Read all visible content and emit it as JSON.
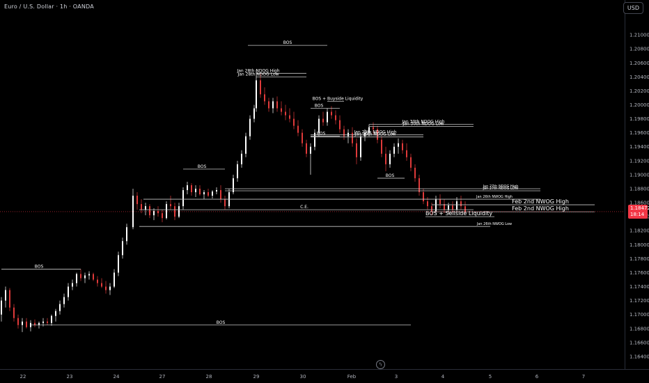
{
  "header": {
    "symbol": "Euro / U.S. Dollar · 1h · OANDA",
    "currency": "USD"
  },
  "price_badge": {
    "price": "1.18472",
    "countdown": "18:14"
  },
  "colors": {
    "up": "#ffffff",
    "down": "#e03a3a",
    "lines": "#c8c8c8",
    "price_line": "#f23645",
    "axis_text": "#b2b5be",
    "background": "#000000"
  },
  "chart_data": {
    "type": "candlestick",
    "x_axis": {
      "ticks": [
        "22",
        "23",
        "24",
        "27",
        "28",
        "29",
        "30",
        "Feb",
        "3",
        "4",
        "5",
        "6",
        "7"
      ]
    },
    "y_axis": {
      "ylim": [
        1.163,
        1.2125
      ],
      "ticks": [
        "1.21000",
        "1.20800",
        "1.20600",
        "1.20400",
        "1.20200",
        "1.20000",
        "1.19800",
        "1.19600",
        "1.19400",
        "1.19200",
        "1.19000",
        "1.18800",
        "1.18600",
        "1.18400",
        "1.18200",
        "1.18000",
        "1.17800",
        "1.17600",
        "1.17400",
        "1.17200",
        "1.17000",
        "1.16800",
        "1.16600",
        "1.16400"
      ]
    },
    "current_price": 1.18472,
    "candles": [
      [
        0,
        1.17,
        1.1725,
        1.169,
        1.172
      ],
      [
        2,
        1.172,
        1.174,
        1.171,
        1.1735
      ],
      [
        4,
        1.1735,
        1.1738,
        1.1705,
        1.171
      ],
      [
        6,
        1.171,
        1.1715,
        1.169,
        1.1695
      ],
      [
        8,
        1.1695,
        1.17,
        1.168,
        1.1685
      ],
      [
        10,
        1.1685,
        1.1695,
        1.1675,
        1.169
      ],
      [
        12,
        1.169,
        1.1695,
        1.168,
        1.1682
      ],
      [
        14,
        1.1682,
        1.1692,
        1.1676,
        1.1688
      ],
      [
        16,
        1.1688,
        1.1693,
        1.1682,
        1.1685
      ],
      [
        18,
        1.1685,
        1.169,
        1.168,
        1.1688
      ],
      [
        20,
        1.1688,
        1.1695,
        1.1683,
        1.169
      ],
      [
        22,
        1.169,
        1.1695,
        1.1685,
        1.1688
      ],
      [
        24,
        1.1688,
        1.17,
        1.1684,
        1.1698
      ],
      [
        26,
        1.1698,
        1.1708,
        1.169,
        1.1705
      ],
      [
        28,
        1.1705,
        1.172,
        1.17,
        1.1715
      ],
      [
        30,
        1.1715,
        1.173,
        1.171,
        1.1725
      ],
      [
        32,
        1.1725,
        1.1745,
        1.172,
        1.174
      ],
      [
        34,
        1.174,
        1.175,
        1.1735,
        1.1745
      ],
      [
        36,
        1.1745,
        1.176,
        1.174,
        1.1758
      ],
      [
        38,
        1.1758,
        1.1765,
        1.1748,
        1.1752
      ],
      [
        40,
        1.1752,
        1.176,
        1.1745,
        1.1756
      ],
      [
        42,
        1.1756,
        1.1762,
        1.175,
        1.1758
      ],
      [
        44,
        1.1758,
        1.176,
        1.1748,
        1.175
      ],
      [
        46,
        1.175,
        1.1755,
        1.174,
        1.1745
      ],
      [
        48,
        1.1745,
        1.1752,
        1.1738,
        1.174
      ],
      [
        50,
        1.174,
        1.1748,
        1.173,
        1.1735
      ],
      [
        52,
        1.1735,
        1.1745,
        1.1728,
        1.174
      ],
      [
        54,
        1.174,
        1.1765,
        1.1738,
        1.176
      ],
      [
        56,
        1.176,
        1.179,
        1.1755,
        1.1785
      ],
      [
        58,
        1.1785,
        1.181,
        1.178,
        1.1805
      ],
      [
        60,
        1.1805,
        1.183,
        1.18,
        1.1825
      ],
      [
        63,
        1.1825,
        1.188,
        1.1822,
        1.187
      ],
      [
        65,
        1.187,
        1.1875,
        1.185,
        1.1858
      ],
      [
        67,
        1.1858,
        1.1865,
        1.1845,
        1.185
      ],
      [
        69,
        1.185,
        1.186,
        1.1842,
        1.1855
      ],
      [
        71,
        1.1855,
        1.1858,
        1.1838,
        1.1842
      ],
      [
        73,
        1.1842,
        1.1852,
        1.1835,
        1.1848
      ],
      [
        75,
        1.1848,
        1.1855,
        1.184,
        1.1845
      ],
      [
        77,
        1.1845,
        1.185,
        1.1832,
        1.1838
      ],
      [
        79,
        1.1838,
        1.1862,
        1.1836,
        1.1858
      ],
      [
        81,
        1.1858,
        1.187,
        1.185,
        1.1855
      ],
      [
        83,
        1.1855,
        1.186,
        1.1835,
        1.184
      ],
      [
        85,
        1.184,
        1.186,
        1.1838,
        1.1855
      ],
      [
        87,
        1.1855,
        1.1882,
        1.185,
        1.1878
      ],
      [
        89,
        1.1878,
        1.189,
        1.1872,
        1.1885
      ],
      [
        91,
        1.1885,
        1.1888,
        1.187,
        1.1875
      ],
      [
        93,
        1.1875,
        1.1885,
        1.1868,
        1.188
      ],
      [
        95,
        1.188,
        1.1885,
        1.187,
        1.1872
      ],
      [
        97,
        1.1872,
        1.1878,
        1.1865,
        1.1875
      ],
      [
        99,
        1.1875,
        1.188,
        1.1868,
        1.187
      ],
      [
        101,
        1.187,
        1.1878,
        1.1866,
        1.1876
      ],
      [
        103,
        1.1876,
        1.1882,
        1.1872,
        1.1878
      ],
      [
        105,
        1.1878,
        1.1885,
        1.186,
        1.1865
      ],
      [
        107,
        1.1865,
        1.187,
        1.185,
        1.1855
      ],
      [
        109,
        1.1855,
        1.188,
        1.1852,
        1.1875
      ],
      [
        111,
        1.1875,
        1.19,
        1.1872,
        1.1895
      ],
      [
        113,
        1.1895,
        1.192,
        1.189,
        1.1915
      ],
      [
        115,
        1.1915,
        1.1935,
        1.191,
        1.193
      ],
      [
        117,
        1.193,
        1.196,
        1.1925,
        1.1955
      ],
      [
        119,
        1.1955,
        1.1985,
        1.195,
        1.198
      ],
      [
        121,
        1.198,
        1.2,
        1.1975,
        1.1995
      ],
      [
        122,
        1.1995,
        1.205,
        1.199,
        1.2035
      ],
      [
        124,
        1.2035,
        1.2045,
        1.201,
        1.2015
      ],
      [
        126,
        1.2015,
        1.2025,
        1.2,
        1.2005
      ],
      [
        128,
        1.2005,
        1.201,
        1.199,
        1.1995
      ],
      [
        130,
        1.1995,
        1.201,
        1.1988,
        1.2005
      ],
      [
        132,
        1.2005,
        1.2012,
        1.199,
        1.1995
      ],
      [
        134,
        1.1995,
        1.2005,
        1.1985,
        1.199
      ],
      [
        136,
        1.199,
        1.2,
        1.1978,
        1.1985
      ],
      [
        138,
        1.1985,
        1.1995,
        1.1975,
        1.198
      ],
      [
        140,
        1.198,
        1.199,
        1.1965,
        1.197
      ],
      [
        142,
        1.197,
        1.1978,
        1.1955,
        1.196
      ],
      [
        144,
        1.196,
        1.1965,
        1.194,
        1.1945
      ],
      [
        146,
        1.1945,
        1.195,
        1.1925,
        1.193
      ],
      [
        148,
        1.193,
        1.1945,
        1.19,
        1.194
      ],
      [
        150,
        1.194,
        1.1965,
        1.1935,
        1.196
      ],
      [
        152,
        1.196,
        1.1985,
        1.1955,
        1.198
      ],
      [
        154,
        1.198,
        1.199,
        1.197,
        1.1975
      ],
      [
        156,
        1.1975,
        1.1995,
        1.197,
        1.199
      ],
      [
        158,
        1.199,
        1.1998,
        1.198,
        1.1985
      ],
      [
        160,
        1.1985,
        1.1992,
        1.1972,
        1.1978
      ],
      [
        162,
        1.1978,
        1.1985,
        1.196,
        1.1965
      ],
      [
        164,
        1.1965,
        1.197,
        1.195,
        1.1955
      ],
      [
        166,
        1.1955,
        1.1965,
        1.1945,
        1.196
      ],
      [
        168,
        1.196,
        1.1968,
        1.194,
        1.1945
      ],
      [
        170,
        1.1945,
        1.1952,
        1.1915,
        1.1925
      ],
      [
        172,
        1.1925,
        1.196,
        1.192,
        1.1955
      ],
      [
        174,
        1.1955,
        1.1965,
        1.1948,
        1.196
      ],
      [
        176,
        1.196,
        1.1972,
        1.1955,
        1.1968
      ],
      [
        178,
        1.1968,
        1.1975,
        1.1958,
        1.1965
      ],
      [
        180,
        1.1965,
        1.197,
        1.1945,
        1.195
      ],
      [
        182,
        1.195,
        1.1955,
        1.1925,
        1.193
      ],
      [
        184,
        1.193,
        1.194,
        1.1905,
        1.1915
      ],
      [
        186,
        1.1915,
        1.1935,
        1.191,
        1.193
      ],
      [
        188,
        1.193,
        1.1945,
        1.1925,
        1.194
      ],
      [
        190,
        1.194,
        1.1952,
        1.193,
        1.1945
      ],
      [
        192,
        1.1945,
        1.195,
        1.193,
        1.1935
      ],
      [
        194,
        1.1935,
        1.1945,
        1.192,
        1.1925
      ],
      [
        196,
        1.1925,
        1.193,
        1.1905,
        1.191
      ],
      [
        198,
        1.191,
        1.1915,
        1.189,
        1.1895
      ],
      [
        200,
        1.1895,
        1.19,
        1.187,
        1.1875
      ],
      [
        202,
        1.1875,
        1.188,
        1.1858,
        1.1862
      ],
      [
        204,
        1.1862,
        1.1868,
        1.185,
        1.1855
      ],
      [
        206,
        1.1855,
        1.186,
        1.1842,
        1.1848
      ],
      [
        208,
        1.1848,
        1.187,
        1.1845,
        1.1865
      ],
      [
        210,
        1.1865,
        1.1872,
        1.1852,
        1.1858
      ],
      [
        212,
        1.1858,
        1.1865,
        1.1845,
        1.185
      ],
      [
        214,
        1.185,
        1.186,
        1.1844,
        1.1856
      ],
      [
        216,
        1.1856,
        1.1862,
        1.1846,
        1.185
      ],
      [
        218,
        1.185,
        1.1868,
        1.1846,
        1.1862
      ],
      [
        220,
        1.1862,
        1.187,
        1.185,
        1.1855
      ],
      [
        222,
        1.1855,
        1.1862,
        1.1845,
        1.1847
      ]
    ],
    "levels": [
      {
        "label": "BOS",
        "y": 1.1765,
        "x1": 0,
        "x2": 38,
        "label_x": 18
      },
      {
        "label": "BOS",
        "y": 1.1685,
        "x1": 14,
        "x2": 196,
        "label_x": 105
      },
      {
        "label": "BOS",
        "y": 1.1908,
        "x1": 87,
        "x2": 107,
        "label_x": 96
      },
      {
        "label": "BOS",
        "y": 1.2085,
        "x1": 118,
        "x2": 156,
        "label_x": 137
      },
      {
        "label": "BOS",
        "y": 1.1955,
        "x1": 148,
        "x2": 162,
        "label_x": 153
      },
      {
        "label": "BOS",
        "y": 1.1995,
        "x1": 148,
        "x2": 162,
        "label_x": 152
      },
      {
        "label": "BOS",
        "y": 1.1895,
        "x1": 180,
        "x2": 193,
        "label_x": 186
      },
      {
        "label": "BOS + Buyside Liquidity",
        "y": 1.2005,
        "x1": 156,
        "x2": 164,
        "label_x": 161
      },
      {
        "label": "Jan 28th NDOG High",
        "y": 1.2045,
        "x1": 122,
        "x2": 146,
        "label_x": 123
      },
      {
        "label": "Jan 28th NDOG Low",
        "y": 1.204,
        "x1": 122,
        "x2": 146,
        "label_x": 123
      },
      {
        "label": "Jan 30th NDOG High",
        "y": 1.1972,
        "x1": 176,
        "x2": 226,
        "label_x": 202
      },
      {
        "label": "Jan 30th NDOG Low",
        "y": 1.1969,
        "x1": 176,
        "x2": 226,
        "label_x": 202
      },
      {
        "label": "Jan 29th NDOG High",
        "y": 1.1957,
        "x1": 148,
        "x2": 202,
        "label_x": 179
      },
      {
        "label": "Jan 29th NDOG Low",
        "y": 1.1954,
        "x1": 148,
        "x2": 202,
        "label_x": 179
      },
      {
        "label": "Jan 27th NDOG High",
        "y": 1.188,
        "x1": 107,
        "x2": 258,
        "label_x": 239
      },
      {
        "label": "Jan 27th NDOG LOW",
        "y": 1.1877,
        "x1": 107,
        "x2": 258,
        "label_x": 239
      },
      {
        "label": "Jan 26th NWOG High",
        "y": 1.1865,
        "x1": 68,
        "x2": 258,
        "label_x": 236
      },
      {
        "label": "Feb 2nd NWOG High",
        "y": 1.1857,
        "x1": 206,
        "x2": 284,
        "label_x": 258
      },
      {
        "label": "C.E.",
        "y": 1.185,
        "x1": 66,
        "x2": 226,
        "label_x": 145
      },
      {
        "label": "Feb 2nd NWOG High",
        "y": 1.1847,
        "x1": 206,
        "x2": 284,
        "label_x": 258
      },
      {
        "label": "BOS + Sellside Liquidity",
        "y": 1.184,
        "x1": 203,
        "x2": 236,
        "label_x": 219
      },
      {
        "label": "Jan 26th NWOG Low",
        "y": 1.1826,
        "x1": 66,
        "x2": 234,
        "label_x": 236
      }
    ]
  }
}
